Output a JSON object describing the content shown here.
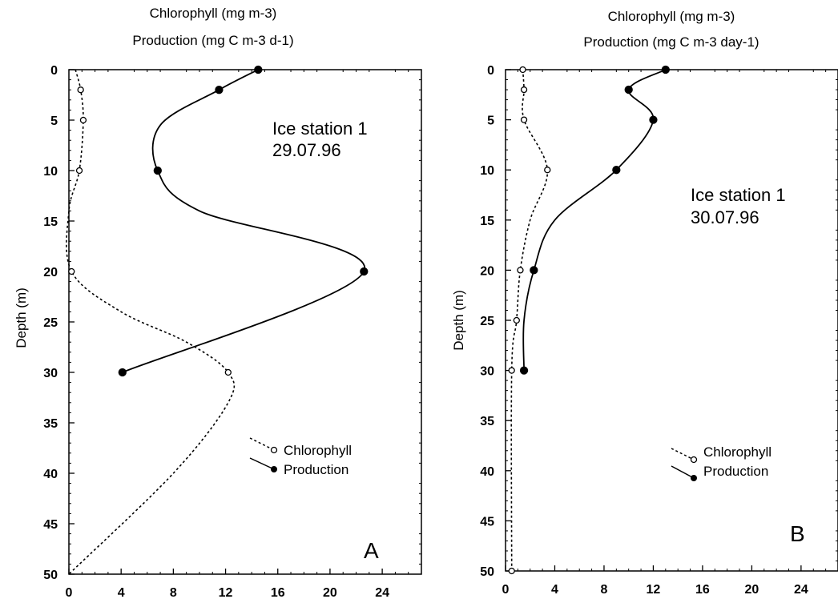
{
  "chart_data": [
    {
      "type": "line",
      "title": "Chlorophyll (mg m-3)",
      "subtitle": "Production (mg C m-3 d-1)",
      "ylabel": "Depth (m)",
      "xlabel": "",
      "xlim": [
        0,
        27
      ],
      "ylim": [
        0,
        50
      ],
      "y_inverted": true,
      "x_ticks": [
        0,
        4,
        8,
        12,
        16,
        20,
        24
      ],
      "y_ticks": [
        0,
        5,
        10,
        15,
        20,
        25,
        30,
        35,
        40,
        45,
        50
      ],
      "annotation_line1": "Ice station 1",
      "annotation_line2": "29.07.96",
      "panel_label": "A",
      "series": [
        {
          "name": "Chlorophyll",
          "marker": "open-circle",
          "line": "dotted",
          "points": [
            [
              0.9,
              2
            ],
            [
              1.1,
              5
            ],
            [
              0.8,
              10
            ],
            [
              0.2,
              20
            ],
            [
              12.2,
              30
            ]
          ],
          "curve": [
            [
              0.5,
              0
            ],
            [
              0.9,
              2
            ],
            [
              1.1,
              5
            ],
            [
              0.8,
              10
            ],
            [
              0,
              14
            ],
            [
              0.2,
              20
            ],
            [
              4,
              24
            ],
            [
              9,
              27
            ],
            [
              12.2,
              30
            ],
            [
              12.2,
              33
            ],
            [
              8,
              40
            ],
            [
              0,
              50
            ]
          ]
        },
        {
          "name": "Production",
          "marker": "filled-circle",
          "line": "solid",
          "points": [
            [
              14.5,
              0
            ],
            [
              11.5,
              2
            ],
            [
              6.8,
              10
            ],
            [
              22.6,
              20
            ],
            [
              4.1,
              30
            ]
          ],
          "curve": [
            [
              14.5,
              0
            ],
            [
              11.5,
              2
            ],
            [
              7,
              5.5
            ],
            [
              6.8,
              10
            ],
            [
              10,
              14
            ],
            [
              22.6,
              20
            ],
            [
              4.1,
              30
            ]
          ]
        }
      ],
      "legend_position": "bottom-right"
    },
    {
      "type": "line",
      "title": "Chlorophyll (mg m-3)",
      "subtitle": "Production (mg C m-3 day-1)",
      "ylabel": "Depth (m)",
      "xlabel": "",
      "xlim": [
        0,
        27
      ],
      "ylim": [
        0,
        50
      ],
      "y_inverted": true,
      "x_ticks": [
        0,
        4,
        8,
        12,
        16,
        20,
        24
      ],
      "y_ticks": [
        0,
        5,
        10,
        15,
        20,
        25,
        30,
        35,
        40,
        45,
        50
      ],
      "annotation_line1": "Ice station 1",
      "annotation_line2": "30.07.96",
      "panel_label": "B",
      "series": [
        {
          "name": "Chlorophyll",
          "marker": "open-circle",
          "line": "dotted",
          "points": [
            [
              1.4,
              0
            ],
            [
              1.5,
              2
            ],
            [
              1.5,
              5
            ],
            [
              3.4,
              10
            ],
            [
              1.2,
              20
            ],
            [
              0.9,
              25
            ],
            [
              0.5,
              30
            ],
            [
              0.5,
              50
            ]
          ],
          "curve": [
            [
              1.4,
              0
            ],
            [
              1.5,
              2
            ],
            [
              1.5,
              5
            ],
            [
              3.4,
              10
            ],
            [
              2,
              15
            ],
            [
              1.2,
              20
            ],
            [
              0.9,
              25
            ],
            [
              0.5,
              30
            ],
            [
              0.5,
              50
            ]
          ]
        },
        {
          "name": "Production",
          "marker": "filled-circle",
          "line": "solid",
          "points": [
            [
              13,
              0
            ],
            [
              10,
              2
            ],
            [
              12,
              5
            ],
            [
              9,
              10
            ],
            [
              2.3,
              20
            ],
            [
              1.5,
              30
            ]
          ],
          "curve": [
            [
              13,
              0
            ],
            [
              10,
              2
            ],
            [
              12,
              5
            ],
            [
              9,
              10
            ],
            [
              4,
              15
            ],
            [
              2.3,
              20
            ],
            [
              1.5,
              25
            ],
            [
              1.5,
              30
            ]
          ]
        }
      ],
      "legend_position": "bottom-right"
    }
  ]
}
